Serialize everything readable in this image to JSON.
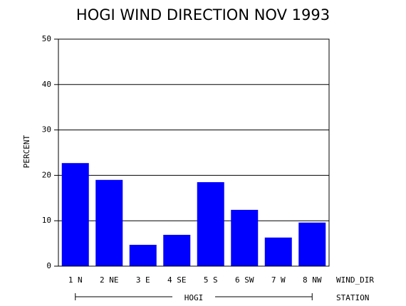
{
  "chart_data": {
    "type": "bar",
    "title": "HOGI WIND DIRECTION NOV 1993",
    "ylabel": "PERCENT",
    "xlabel": "WIND_DIR",
    "group_label": "HOGI",
    "group_axis_label": "STATION",
    "categories": [
      "1 N",
      "2 NE",
      "3 E",
      "4 SE",
      "5 S",
      "6 SW",
      "7 W",
      "8 NW"
    ],
    "values": [
      22.7,
      19.0,
      4.7,
      6.9,
      18.5,
      12.4,
      6.3,
      9.6
    ],
    "color": "#0000ff",
    "ylim": [
      0,
      50
    ],
    "yticks": [
      0,
      10,
      20,
      30,
      40,
      50
    ],
    "grid": true
  }
}
